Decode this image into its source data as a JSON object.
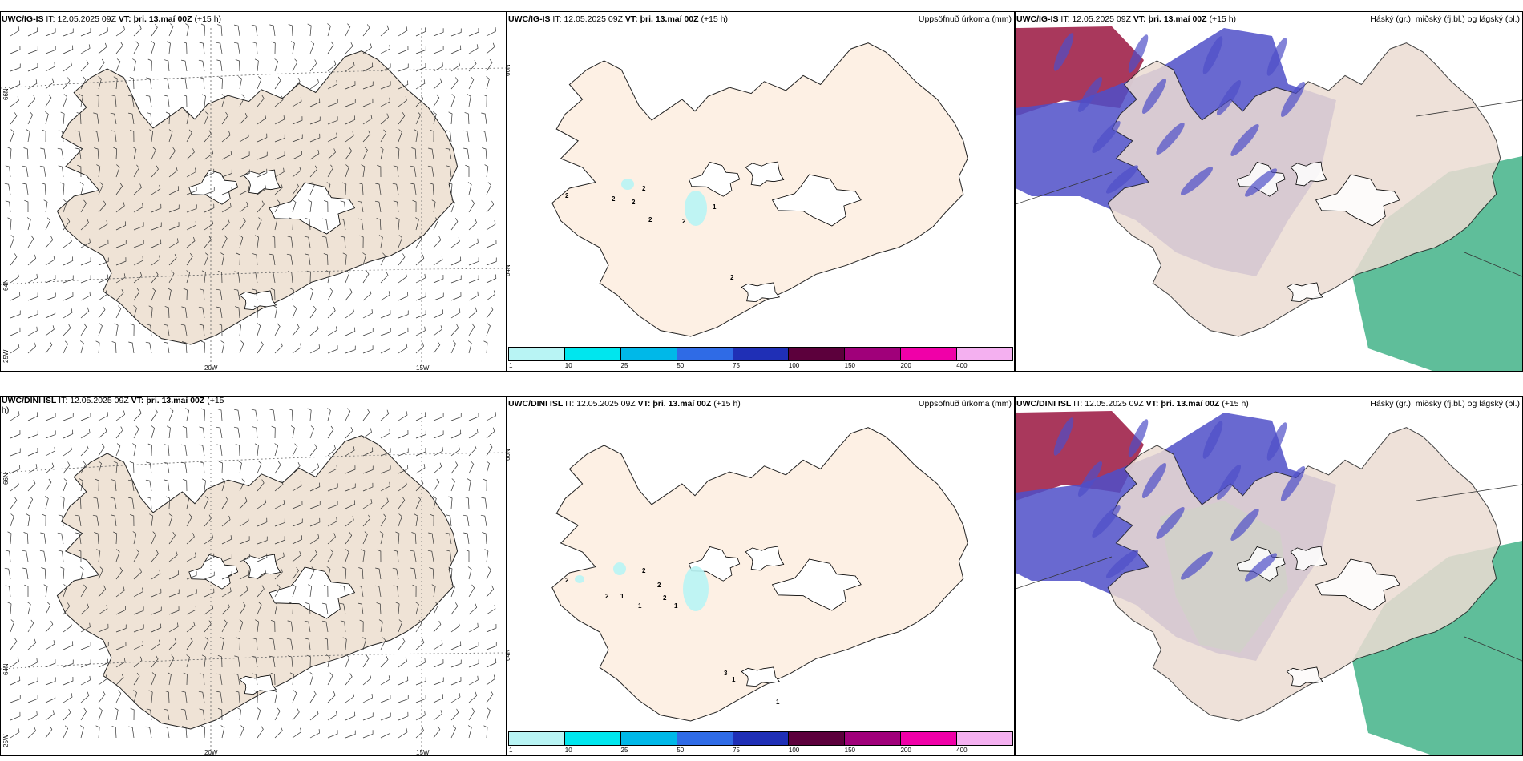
{
  "panels": [
    {
      "model": "UWC/IG-IS",
      "it_label": "IT:",
      "it_value": "12.05.2025 09Z",
      "vt_label": "VT:",
      "vt_value": "þri. 13.maí 00Z",
      "offset": "(+15 h)"
    },
    {
      "model": "UWC/IG-IS",
      "it_label": "IT:",
      "it_value": "12.05.2025 09Z",
      "vt_label": "VT:",
      "vt_value": "þri. 13.maí 00Z",
      "offset": "(+15 h)",
      "title": "Uppsöfnuð úrkoma (mm)"
    },
    {
      "model": "UWC/IG-IS",
      "it_label": "IT:",
      "it_value": "12.05.2025 09Z",
      "vt_label": "VT:",
      "vt_value": "þri. 13.maí 00Z",
      "offset": "(+15 h)",
      "title": "Háský (gr.), miðský (fj.bl.) og lágský (bl.)"
    },
    {
      "model": "UWC/DINI ISL",
      "it_label": "IT:",
      "it_value": "12.05.2025 09Z",
      "vt_label": "VT:",
      "vt_value": "þri. 13.maí 00Z",
      "offset": "(+15",
      "offset_wrap": "h)"
    },
    {
      "model": "UWC/DINI ISL",
      "it_label": "IT:",
      "it_value": "12.05.2025 09Z",
      "vt_label": "VT:",
      "vt_value": "þri. 13.maí 00Z",
      "offset": "(+15 h)",
      "title": "Uppsöfnuð úrkoma (mm)"
    },
    {
      "model": "UWC/DINI ISL",
      "it_label": "IT:",
      "it_value": "12.05.2025 09Z",
      "vt_label": "VT:",
      "vt_value": "þri. 13.maí 00Z",
      "offset": "(+15 h)",
      "title": "Háský (gr.), miðský (fj.bl.) og lágský (bl.)"
    }
  ],
  "axis_labels": {
    "lat66": "66N",
    "lat64": "64N",
    "lon25": "25W",
    "lon20": "20W",
    "lon15": "15W"
  },
  "colorbar": {
    "ticks": [
      "1",
      "10",
      "25",
      "50",
      "75",
      "100",
      "150",
      "200",
      "400"
    ],
    "colors": [
      "#b8f4f4",
      "#00e6ee",
      "#00b8e8",
      "#2f6be6",
      "#1f2fb6",
      "#5c003c",
      "#a0007a",
      "#f000a8",
      "#f4b0f0"
    ]
  },
  "precip_labels_top": [
    "2",
    "2",
    "1",
    "2",
    "2",
    "2",
    "2",
    "2"
  ],
  "precip_labels_bottom": [
    "2",
    "2",
    "2",
    "2",
    "1",
    "1",
    "1",
    "3",
    "1",
    "1",
    "2"
  ],
  "colors": {
    "land_wind": "#efe3d6",
    "land_precip": "#fdf0e4",
    "land_cloud": "#ecdcd3",
    "low_cloud": "#4f4fc8",
    "mid_cloud": "#2aa878",
    "high_cloud": "#9a1540"
  }
}
